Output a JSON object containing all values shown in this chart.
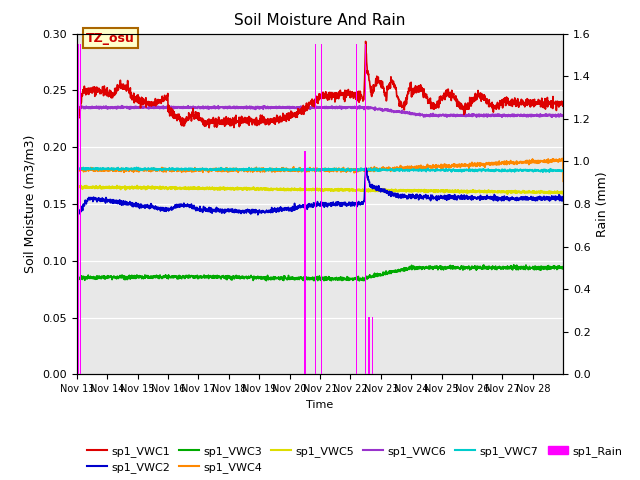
{
  "title": "Soil Moisture And Rain",
  "xlabel": "Time",
  "ylabel_left": "Soil Moisture (m3/m3)",
  "ylabel_right": "Rain (mm)",
  "ylim_left": [
    0.0,
    0.3
  ],
  "ylim_right": [
    0.0,
    1.6
  ],
  "xlim": [
    0,
    16
  ],
  "xtick_labels": [
    "Nov 13",
    "Nov 14",
    "Nov 15",
    "Nov 16",
    "Nov 17",
    "Nov 18",
    "Nov 19",
    "Nov 20",
    "Nov 21",
    "Nov 22",
    "Nov 23",
    "Nov 24",
    "Nov 25",
    "Nov 26",
    "Nov 27",
    "Nov 28"
  ],
  "annotation_text": "TZ_osu",
  "annotation_color": "#cc0000",
  "annotation_bg": "#ffffcc",
  "annotation_border": "#aa6600",
  "background_color": "#e8e8e8",
  "series_colors": {
    "VWC1": "#dd0000",
    "VWC2": "#0000cc",
    "VWC3": "#00aa00",
    "VWC4": "#ff8800",
    "VWC5": "#dddd00",
    "VWC6": "#9933cc",
    "VWC7": "#00cccc",
    "Rain": "#ff00ff"
  },
  "legend_labels": [
    "sp1_VWC1",
    "sp1_VWC2",
    "sp1_VWC3",
    "sp1_VWC4",
    "sp1_VWC5",
    "sp1_VWC6",
    "sp1_VWC7",
    "sp1_Rain"
  ],
  "rain_events": [
    [
      0.05,
      1.55
    ],
    [
      0.12,
      1.55
    ],
    [
      7.5,
      1.05
    ],
    [
      7.85,
      1.55
    ],
    [
      8.05,
      1.55
    ],
    [
      9.2,
      1.55
    ],
    [
      9.5,
      1.55
    ],
    [
      9.62,
      0.27
    ],
    [
      9.72,
      0.27
    ]
  ]
}
